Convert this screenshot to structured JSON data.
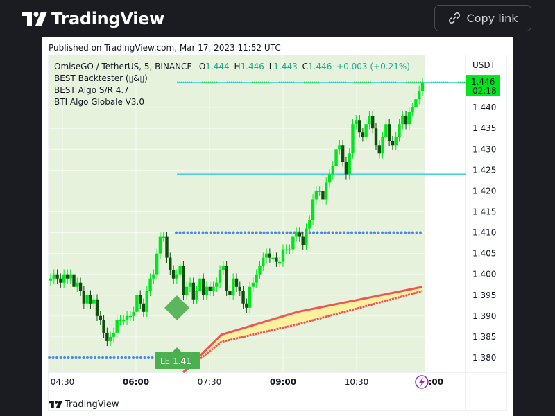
{
  "header": {
    "brand": "TradingView",
    "copy_link_label": "Copy link"
  },
  "published": "Published on TradingView.com, Mar 17, 2023 11:52 UTC",
  "legend": {
    "symbol": "OmiseGO / TetherUS, 5, BINANCE",
    "o_label": "O",
    "o_value": "1.444",
    "h_label": "H",
    "h_value": "1.446",
    "l_label": "L",
    "l_value": "1.443",
    "c_label": "C",
    "c_value": "1.446",
    "change": "+0.003 (+0.21%)",
    "indicators": [
      "BEST Backtester (▯&▯)",
      "BEST Algo S/R 4.7",
      "BTI Algo Globale V3.0"
    ]
  },
  "footer": {
    "brand": "TradingView"
  },
  "colors": {
    "up": "#00e61c",
    "down": "#0d4d0d",
    "sr_line": "#4dd0e1",
    "dots": "#4a88e8",
    "band_line": "#ee5555",
    "band_fill": "#fbf2a0",
    "bg_zone": "#e6f2dc"
  },
  "chart_data": {
    "type": "candlestick",
    "unit": "USDT",
    "timeframe": "5",
    "x_ticks": [
      "04:30",
      "06:00",
      "07:30",
      "09:00",
      "10:30",
      "12:00"
    ],
    "y_ticks": [
      "1.380",
      "1.385",
      "1.390",
      "1.395",
      "1.400",
      "1.405",
      "1.410",
      "1.415",
      "1.420",
      "1.425",
      "1.430",
      "1.435",
      "1.440"
    ],
    "ylim": [
      1.3765,
      1.4525
    ],
    "last_price": "1.446",
    "countdown": "02:18",
    "last_candle": {
      "open": 1.444,
      "high": 1.446,
      "low": 1.443,
      "close": 1.446
    },
    "closes": [
      1.399,
      1.4,
      1.399,
      1.398,
      1.4,
      1.399,
      1.4,
      1.397,
      1.398,
      1.396,
      1.393,
      1.395,
      1.393,
      1.394,
      1.39,
      1.389,
      1.386,
      1.384,
      1.385,
      1.386,
      1.389,
      1.389,
      1.389,
      1.39,
      1.39,
      1.391,
      1.395,
      1.393,
      1.391,
      1.396,
      1.399,
      1.4,
      1.405,
      1.409,
      1.409,
      1.404,
      1.401,
      1.399,
      1.4,
      1.402,
      1.395,
      1.397,
      1.398,
      1.394,
      1.396,
      1.399,
      1.395,
      1.397,
      1.396,
      1.397,
      1.398,
      1.401,
      1.402,
      1.396,
      1.395,
      1.399,
      1.397,
      1.396,
      1.393,
      1.392,
      1.397,
      1.398,
      1.4,
      1.402,
      1.404,
      1.405,
      1.404,
      1.404,
      1.403,
      1.403,
      1.406,
      1.406,
      1.406,
      1.409,
      1.41,
      1.409,
      1.407,
      1.411,
      1.413,
      1.418,
      1.42,
      1.42,
      1.418,
      1.422,
      1.424,
      1.426,
      1.43,
      1.431,
      1.427,
      1.424,
      1.429,
      1.436,
      1.437,
      1.434,
      1.433,
      1.436,
      1.438,
      1.435,
      1.431,
      1.429,
      1.433,
      1.436,
      1.432,
      1.431,
      1.433,
      1.436,
      1.438,
      1.436,
      1.439,
      1.44,
      1.442,
      1.444,
      1.446
    ],
    "sr_levels": [
      1.446,
      1.424
    ],
    "dotted_levels": [
      1.41,
      1.38
    ],
    "signal": {
      "label": "LE 1.41"
    },
    "band_upper": [
      [
        1.3765,
        1.3765
      ],
      [
        1.382,
        1.3855
      ],
      [
        1.3865,
        1.391
      ],
      [
        1.391,
        1.397
      ]
    ],
    "band_lower": [
      [
        1.3765,
        1.3765
      ],
      [
        1.3815,
        1.3838
      ],
      [
        1.3855,
        1.388
      ],
      [
        1.3915,
        1.396
      ]
    ]
  }
}
